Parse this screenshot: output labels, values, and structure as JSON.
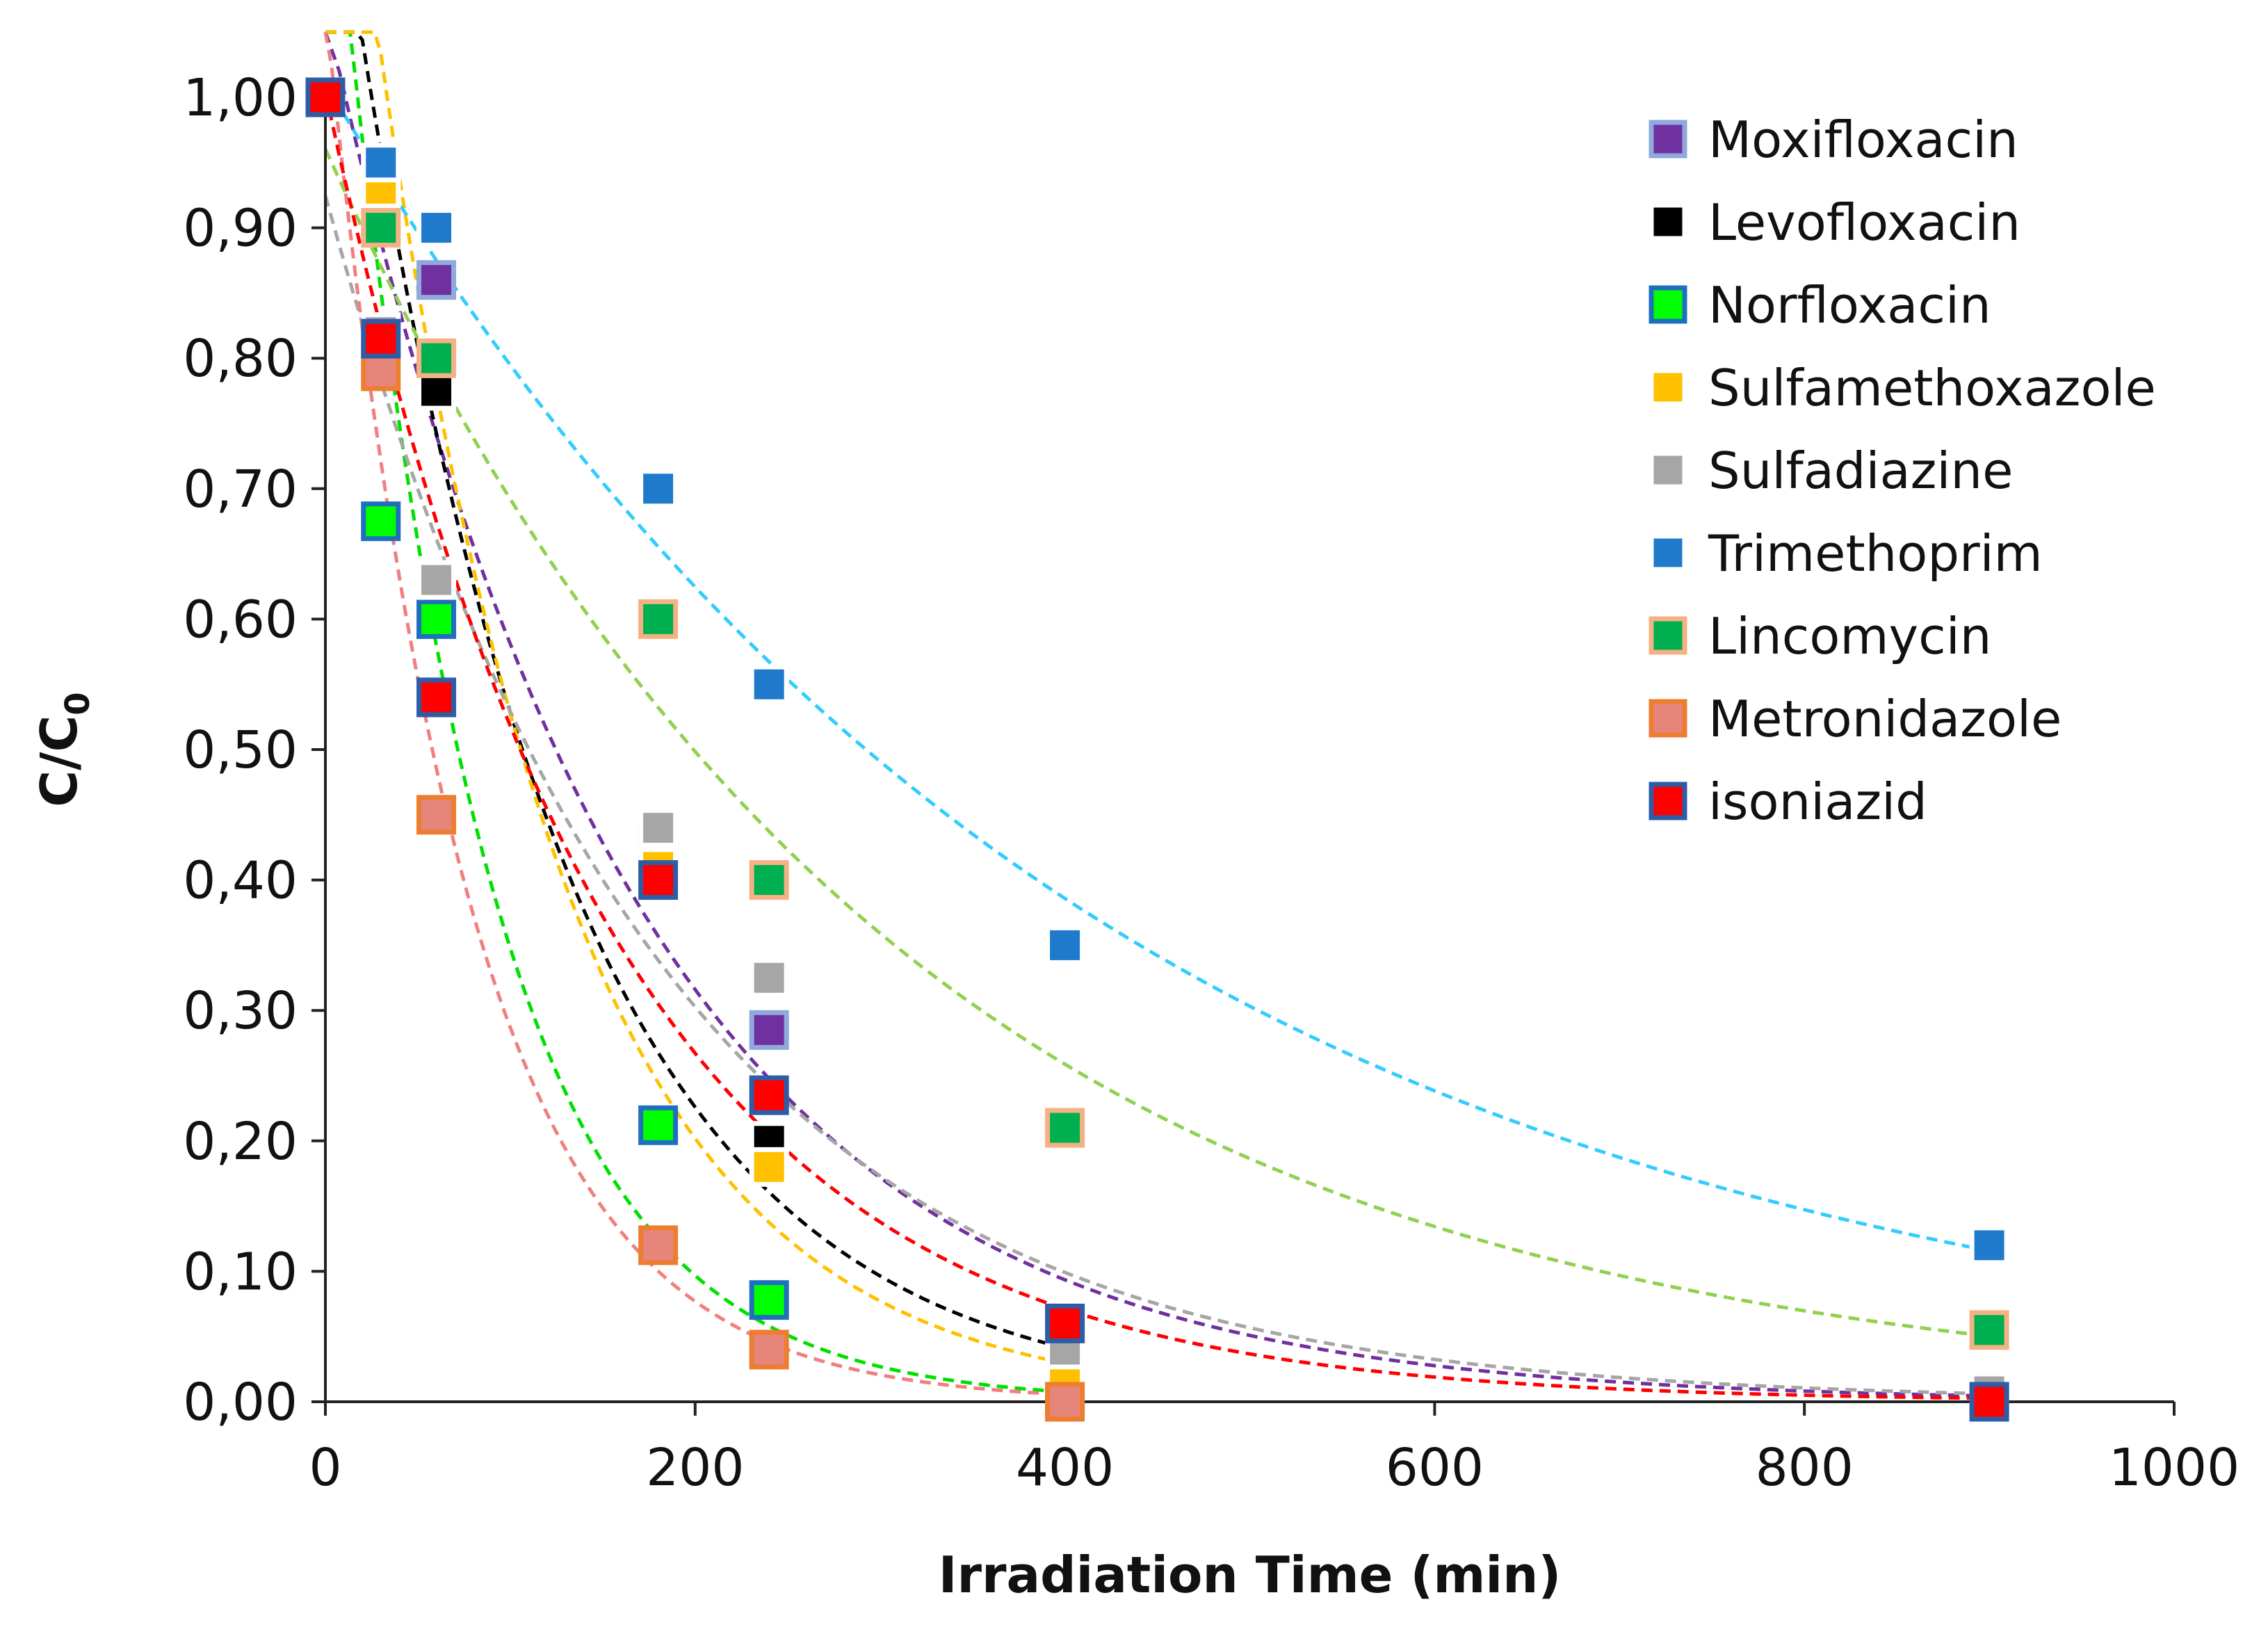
{
  "chart_data": {
    "type": "scatter",
    "title": "",
    "xlabel": "Irradiation Time (min)",
    "ylabel": "C/C",
    "ylabel_subscript": "0",
    "xlim": [
      0,
      1000
    ],
    "ylim": [
      0,
      1.0
    ],
    "x_ticks": [
      0,
      200,
      400,
      600,
      800,
      1000
    ],
    "x_tick_labels": [
      "0",
      "200",
      "400",
      "600",
      "800",
      "1000"
    ],
    "y_ticks": [
      0,
      0.1,
      0.2,
      0.3,
      0.4,
      0.5,
      0.6,
      0.7,
      0.8,
      0.9,
      1.0
    ],
    "y_tick_labels": [
      "0,00",
      "0,10",
      "0,20",
      "0,30",
      "0,40",
      "0,50",
      "0,60",
      "0,70",
      "0,80",
      "0,90",
      "1,00"
    ],
    "grid": false,
    "legend_position": "top-right",
    "trendlines": "exponential, dashed",
    "series": [
      {
        "name": "Moxifloxacin",
        "fill": "#7030A0",
        "edge": "#8EA9DB",
        "trend_color": "#7030A0",
        "x": [
          0,
          30,
          60,
          180,
          240,
          400,
          900
        ],
        "y": [
          1.0,
          0.82,
          0.86,
          0.43,
          0.285,
          0.06,
          0.005
        ]
      },
      {
        "name": "Levofloxacin",
        "fill": "#000000",
        "edge": "#FFFFFF",
        "trend_color": "#000000",
        "x": [
          0,
          30,
          60,
          180,
          240,
          400
        ],
        "y": [
          1.0,
          0.82,
          0.775,
          0.41,
          0.2,
          0.03
        ]
      },
      {
        "name": "Norfloxacin",
        "fill": "#00FF00",
        "edge": "#1F6FBF",
        "trend_color": "#00E000",
        "x": [
          0,
          30,
          60,
          180,
          240,
          400
        ],
        "y": [
          1.0,
          0.675,
          0.6,
          0.212,
          0.078,
          0.005
        ]
      },
      {
        "name": "Sulfamethoxazole",
        "fill": "#FFC000",
        "edge": "#FFFFFF",
        "trend_color": "#FFC000",
        "x": [
          0,
          30,
          60,
          180,
          240,
          400
        ],
        "y": [
          1.0,
          0.93,
          0.8,
          0.41,
          0.18,
          0.02
        ]
      },
      {
        "name": "Sulfadiazine",
        "fill": "#A6A6A6",
        "edge": "#FFFFFF",
        "trend_color": "#A6A6A6",
        "x": [
          0,
          30,
          60,
          180,
          240,
          400,
          900
        ],
        "y": [
          1.0,
          0.82,
          0.63,
          0.44,
          0.325,
          0.04,
          0.008
        ]
      },
      {
        "name": "Trimethoprim",
        "fill": "#1F7ACC",
        "edge": "#FFFFFF",
        "trend_color": "#33CCFF",
        "x": [
          0,
          30,
          60,
          180,
          240,
          400,
          900
        ],
        "y": [
          1.0,
          0.95,
          0.9,
          0.7,
          0.55,
          0.35,
          0.12
        ]
      },
      {
        "name": "Lincomycin",
        "fill": "#00B050",
        "edge": "#F4B183",
        "trend_color": "#92D050",
        "x": [
          0,
          30,
          60,
          180,
          240,
          400,
          900
        ],
        "y": [
          1.0,
          0.9,
          0.8,
          0.6,
          0.4,
          0.21,
          0.055
        ]
      },
      {
        "name": "Metronidazole",
        "fill": "#E6857A",
        "edge": "#ED7D31",
        "trend_color": "#F08080",
        "x": [
          0,
          30,
          60,
          180,
          240,
          400
        ],
        "y": [
          1.0,
          0.79,
          0.45,
          0.12,
          0.04,
          0.0
        ]
      },
      {
        "name": "isoniazid",
        "fill": "#FF0000",
        "edge": "#2E5DA8",
        "trend_color": "#FF0000",
        "x": [
          0,
          30,
          60,
          180,
          240,
          400,
          900
        ],
        "y": [
          1.0,
          0.815,
          0.54,
          0.4,
          0.235,
          0.06,
          0.0
        ]
      }
    ]
  }
}
